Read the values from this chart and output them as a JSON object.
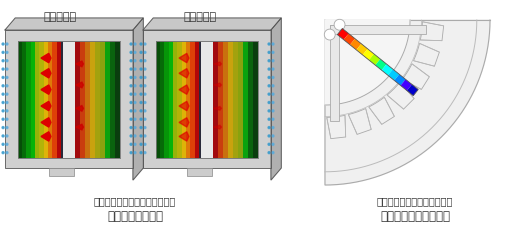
{
  "bg_color": "#ffffff",
  "title_label1": "電磁力２次",
  "title_label2": "電磁力６次",
  "sub_caption1": "（コアに発生している電磁力）",
  "main_caption1": "フーリエ変換計算",
  "sub_caption2": "（磁石のジュール損失密度）",
  "main_caption2": "周波数フィルター計算",
  "text_color": "#333333",
  "rainbow_colors": [
    "#0000ff",
    "#4400cc",
    "#8800aa",
    "#cc0088",
    "#ff0066",
    "#ff4400",
    "#ff8800",
    "#ffcc00",
    "#ffff00",
    "#aaff00",
    "#00ff00",
    "#00ffaa",
    "#00ffff"
  ],
  "magnet_colors": [
    "#0000ff",
    "#3300ee",
    "#6600cc",
    "#9900aa",
    "#cc0088",
    "#ee0044",
    "#ff2200",
    "#ff6600",
    "#ff9900",
    "#ffcc00",
    "#ffff00"
  ],
  "motor_fill": "#f5f5f5",
  "motor_edge": "#aaaaaa",
  "motor_edge2": "#cccccc"
}
